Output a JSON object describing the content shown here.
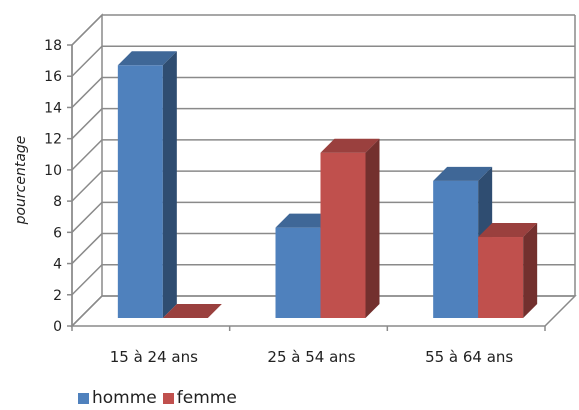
{
  "chart_data": {
    "type": "bar",
    "title": "",
    "xlabel": "",
    "ylabel": "pourcentage",
    "ylim": [
      0,
      18
    ],
    "yticks": [
      0,
      2,
      4,
      6,
      8,
      10,
      12,
      14,
      16,
      18
    ],
    "grid": true,
    "legend_position": "bottom-left",
    "style": "3d-clustered",
    "categories": [
      "15 à 24 ans",
      "25 à 54 ans",
      "55 à 64 ans"
    ],
    "series": [
      {
        "name": "homme",
        "color": "#4F81BD",
        "values": [
          16.7,
          6.3,
          9.3
        ]
      },
      {
        "name": "femme",
        "color": "#C0504D",
        "values": [
          0,
          11.1,
          5.7
        ]
      }
    ]
  }
}
